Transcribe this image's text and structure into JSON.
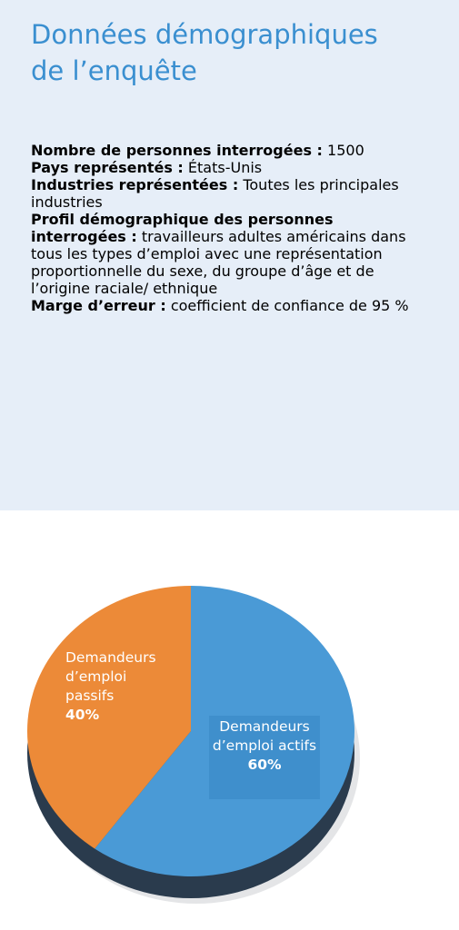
{
  "header": {
    "title": "Données démographiques de l’enquête"
  },
  "items": [
    {
      "label": "Nombre de personnes interrogées :",
      "text": "1500"
    },
    {
      "label": "Pays représentés :",
      "text": "États-Unis"
    },
    {
      "label": "Industries représentées :",
      "text": "Toutes les principales industries"
    },
    {
      "label": "Profil démographique des personnes interrogées :",
      "text": "travailleurs adultes américains dans tous les types d’emploi avec une représentation proportionnelle du sexe, du groupe d’âge et de l’origine raciale/ ethnique"
    },
    {
      "label": "Marge d’erreur :",
      "text": "coefficient de confiance de 95 %"
    }
  ],
  "chart_data": {
    "type": "pie",
    "categories": [
      "Demandeurs d’emploi actifs",
      "Demandeurs d’emploi passifs"
    ],
    "values": [
      60,
      40
    ],
    "value_labels": [
      "60%",
      "40%"
    ],
    "colors": [
      "#4a9ad6",
      "#ec8a38"
    ]
  }
}
